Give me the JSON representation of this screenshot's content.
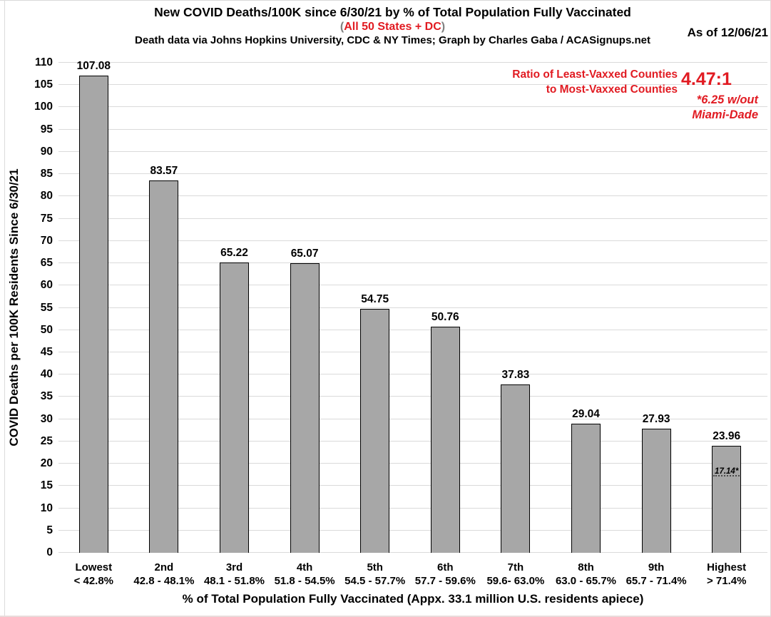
{
  "colors": {
    "accent_red": "#e11b22",
    "paren_gray": "#7f7f7f",
    "bar_fill": "#a7a7a7",
    "bar_border": "#000000",
    "gridline": "#dadada",
    "text": "#000000"
  },
  "chart_data": {
    "type": "bar",
    "title": "New COVID Deaths/100K since 6/30/21 by % of Total Population Fully Vaccinated",
    "subtitle_parts": [
      "(",
      "All 50 States + DC",
      ")"
    ],
    "credit": "Death data via Johns Hopkins University, CDC & NY Times; Graph by Charles Gaba / ACASignups.net",
    "as_of": "As of 12/06/21",
    "xlabel": "% of Total Population Fully Vaccinated (Appx. 33.1 million U.S. residents apiece)",
    "ylabel": "COVID Deaths per 100K Residents Since 6/30/21",
    "ylim": [
      0,
      110
    ],
    "ytick_step": 5,
    "grid": "horizontal",
    "legend": "none",
    "categories": [
      "Lowest",
      "2nd",
      "3rd",
      "4th",
      "5th",
      "6th",
      "7th",
      "8th",
      "9th",
      "Highest"
    ],
    "category_ranges": [
      "< 42.8%",
      "42.8 - 48.1%",
      "48.1 - 51.8%",
      "51.8 - 54.5%",
      "54.5 - 57.7%",
      "57.7 - 59.6%",
      "59.6- 63.0%",
      "63.0 - 65.7%",
      "65.7 - 71.4%",
      "> 71.4%"
    ],
    "values": [
      107.08,
      83.57,
      65.22,
      65.07,
      54.75,
      50.76,
      37.83,
      29.04,
      27.93,
      23.96
    ],
    "annotations": {
      "ratio_label_line1": "Ratio of Least-Vaxxed Counties",
      "ratio_label_line2": "to Most-Vaxxed Counties",
      "ratio_value": "4.47:1",
      "footnote_line1": "*6.25 w/out",
      "footnote_line2": "Miami-Dade"
    },
    "special_marker": {
      "bar_index": 9,
      "value": 17.14,
      "label": "17.14*"
    }
  }
}
